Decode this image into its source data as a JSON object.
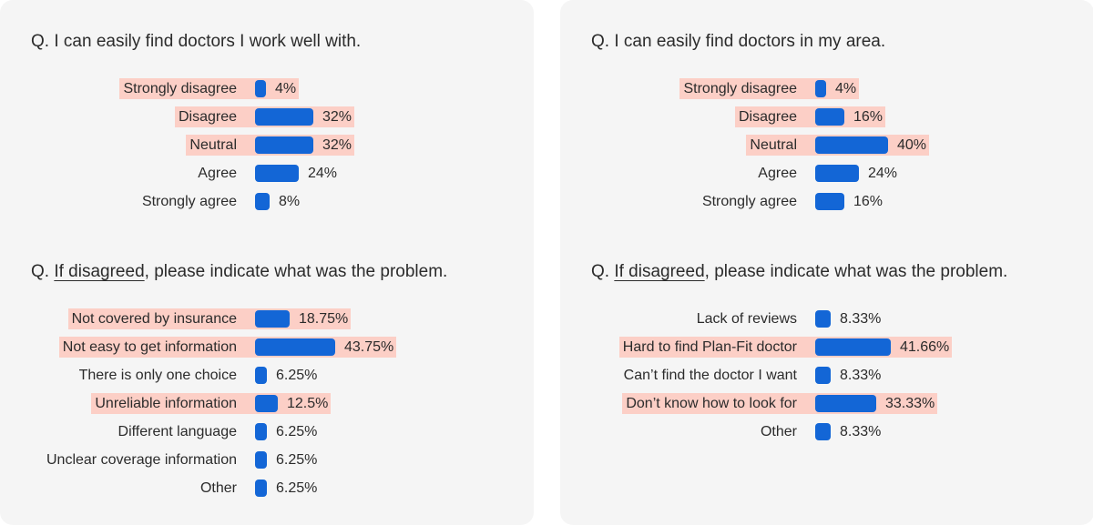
{
  "accent_color": "#1366d6",
  "highlight_color": "#fccfc6",
  "panels": [
    {
      "questions": [
        {
          "prefix": "Q. ",
          "underlined": "",
          "text": "I can easily find doctors I work well with."
        },
        {
          "prefix": "Q. ",
          "underlined": "If disagreed",
          "text": ", please indicate what was the problem."
        }
      ]
    },
    {
      "questions": [
        {
          "prefix": "Q. ",
          "underlined": "",
          "text": "I can easily find doctors in my area."
        },
        {
          "prefix": "Q. ",
          "underlined": "If disagreed",
          "text": ", please indicate what was the problem."
        }
      ]
    }
  ],
  "chart_data": [
    {
      "type": "bar",
      "orientation": "horizontal",
      "title": "Q. I can easily find doctors I work well with.",
      "categories": [
        "Strongly disagree",
        "Disagree",
        "Neutral",
        "Agree",
        "Strongly agree"
      ],
      "values": [
        4,
        32,
        32,
        24,
        8
      ],
      "value_labels": [
        "4%",
        "32%",
        "32%",
        "24%",
        "8%"
      ],
      "highlighted": [
        true,
        true,
        true,
        false,
        false
      ],
      "unit": "%"
    },
    {
      "type": "bar",
      "orientation": "horizontal",
      "title": "Q. If disagreed, please indicate what was the problem.",
      "categories": [
        "Not covered by insurance",
        "Not easy to get information",
        "There is only one choice",
        "Unreliable information",
        "Different language",
        "Unclear coverage information",
        "Other"
      ],
      "values": [
        18.75,
        43.75,
        6.25,
        12.5,
        6.25,
        6.25,
        6.25
      ],
      "value_labels": [
        "18.75%",
        "43.75%",
        "6.25%",
        "12.5%",
        "6.25%",
        "6.25%",
        "6.25%"
      ],
      "highlighted": [
        true,
        true,
        false,
        true,
        false,
        false,
        false
      ],
      "unit": "%"
    },
    {
      "type": "bar",
      "orientation": "horizontal",
      "title": "Q. I can easily find doctors in my area.",
      "categories": [
        "Strongly disagree",
        "Disagree",
        "Neutral",
        "Agree",
        "Strongly agree"
      ],
      "values": [
        4,
        16,
        40,
        24,
        16
      ],
      "value_labels": [
        "4%",
        "16%",
        "40%",
        "24%",
        "16%"
      ],
      "highlighted": [
        true,
        true,
        true,
        false,
        false
      ],
      "unit": "%"
    },
    {
      "type": "bar",
      "orientation": "horizontal",
      "title": "Q. If disagreed, please indicate what was the problem.",
      "categories": [
        "Lack of reviews",
        "Hard to find Plan-Fit doctor",
        "Can’t find the doctor I want",
        "Don’t know how to look for",
        "Other"
      ],
      "values": [
        8.33,
        41.66,
        8.33,
        33.33,
        8.33
      ],
      "value_labels": [
        "8.33%",
        "41.66%",
        "8.33%",
        "33.33%",
        "8.33%"
      ],
      "highlighted": [
        false,
        true,
        false,
        true,
        false
      ],
      "unit": "%"
    }
  ]
}
